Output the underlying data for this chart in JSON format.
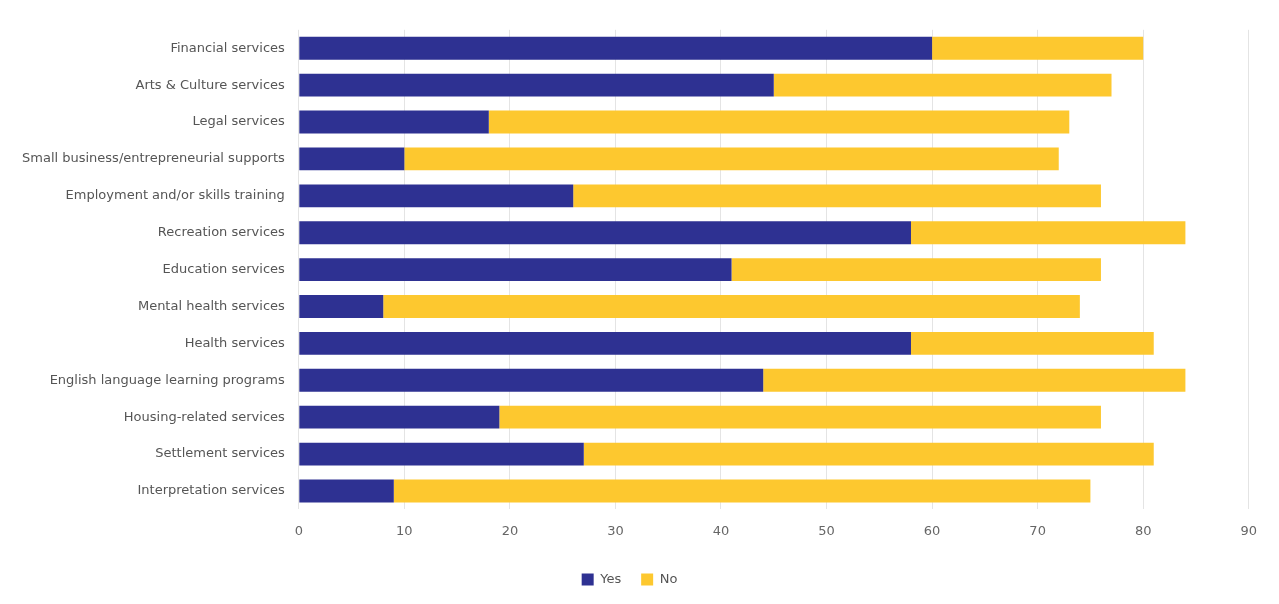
{
  "chart_data": {
    "type": "bar",
    "orientation": "horizontal",
    "stacked": true,
    "categories": [
      "Financial services",
      "Arts & Culture services",
      "Legal services",
      "Small business/entrepreneurial supports",
      "Employment and/or skills training",
      "Recreation services",
      "Education services",
      "Mental health services",
      "Health services",
      "English language learning programs",
      "Housing-related services",
      "Settlement services",
      "Interpretation services"
    ],
    "series": [
      {
        "name": "Yes",
        "color": "#2e3192",
        "values": [
          60,
          45,
          18,
          10,
          26,
          58,
          41,
          8,
          58,
          44,
          19,
          27,
          9
        ]
      },
      {
        "name": "No",
        "color": "#fdc82f",
        "values": [
          20,
          32,
          55,
          62,
          50,
          26,
          35,
          66,
          23,
          40,
          57,
          54,
          66
        ]
      }
    ],
    "xlim": [
      0,
      90
    ],
    "xticks": [
      0,
      10,
      20,
      30,
      40,
      50,
      60,
      70,
      80,
      90
    ],
    "grid": "x",
    "legend": "bottom"
  }
}
